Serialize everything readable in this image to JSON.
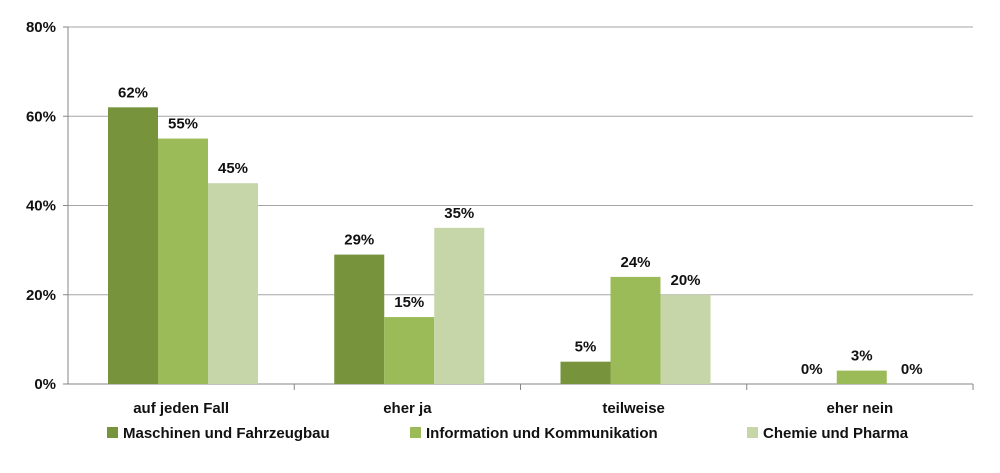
{
  "chart_data": {
    "type": "bar",
    "title": "",
    "xlabel": "",
    "ylabel": "",
    "ylim": [
      0,
      80
    ],
    "yticks": [
      0,
      20,
      40,
      60,
      80
    ],
    "ytick_labels": [
      "0%",
      "20%",
      "40%",
      "60%",
      "80%"
    ],
    "grid": true,
    "legend_position": "bottom",
    "categories": [
      "auf jeden Fall",
      "eher ja",
      "teilweise",
      "eher nein"
    ],
    "series": [
      {
        "name": "Maschinen und Fahrzeugbau",
        "color": "#77933c",
        "values": [
          62,
          29,
          5,
          0
        ],
        "labels": [
          "62%",
          "29%",
          "5%",
          "0%"
        ]
      },
      {
        "name": "Information und Kommunikation",
        "color": "#9bbb59",
        "values": [
          55,
          15,
          24,
          3
        ],
        "labels": [
          "55%",
          "15%",
          "24%",
          "3%"
        ]
      },
      {
        "name": "Chemie und Pharma",
        "color": "#c6d6a9",
        "values": [
          45,
          35,
          20,
          0
        ],
        "labels": [
          "45%",
          "35%",
          "20%",
          "0%"
        ]
      }
    ]
  }
}
